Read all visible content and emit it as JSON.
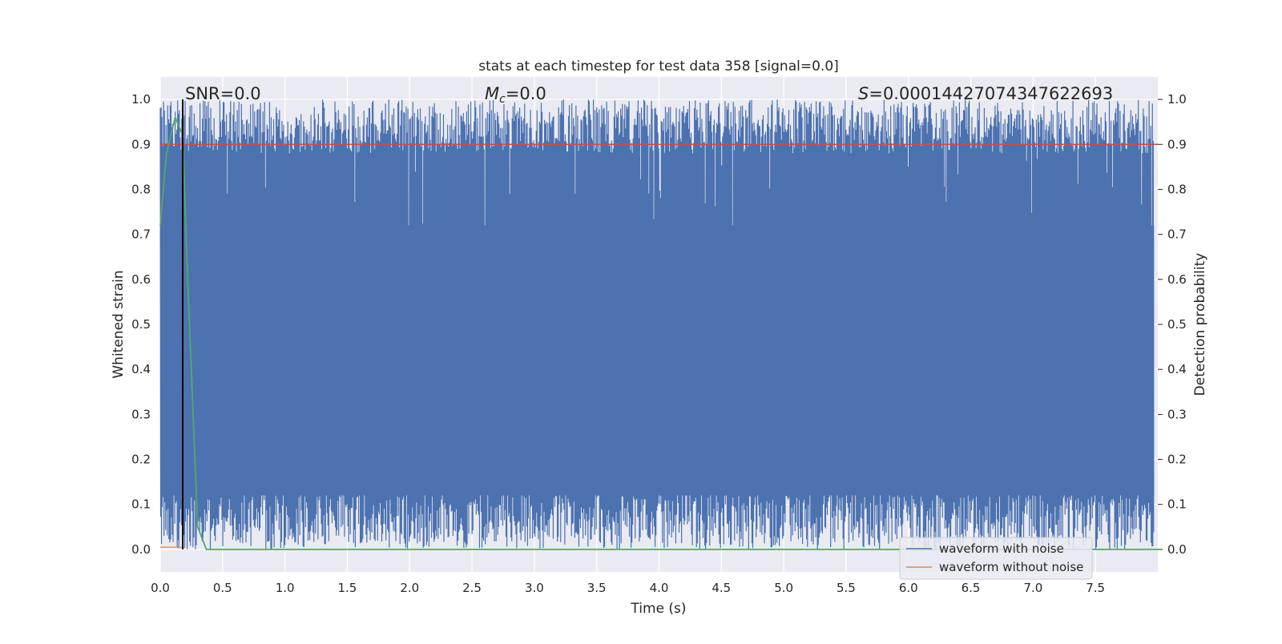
{
  "chart_data": {
    "type": "line",
    "title": "stats at each timestep for test data 358 [signal=0.0]",
    "xlabel": "Time (s)",
    "ylabel_left": "Whitened strain",
    "ylabel_right": "Detection probability",
    "xlim": [
      0.0,
      8.0
    ],
    "ylim": [
      -0.05,
      1.05
    ],
    "x_ticks": [
      "0.0",
      "0.5",
      "1.0",
      "1.5",
      "2.0",
      "2.5",
      "3.0",
      "3.5",
      "4.0",
      "4.5",
      "5.0",
      "5.5",
      "6.0",
      "6.5",
      "7.0",
      "7.5"
    ],
    "y_ticks": [
      "0.0",
      "0.1",
      "0.2",
      "0.3",
      "0.4",
      "0.5",
      "0.6",
      "0.7",
      "0.8",
      "0.9",
      "1.0"
    ],
    "grid": true,
    "legend_placement": "bottom-right",
    "annotations": {
      "snr": "SNR=0.0",
      "mc_symbol": "M",
      "mc_sub": "c",
      "mc_value": "=0.0",
      "s_symbol": "S",
      "s_value": "=0.0001442707434762269​3"
    },
    "series": [
      {
        "name": "waveform with noise",
        "color": "#4c72b0",
        "description_of_shape": "dense noisy band between ~0.0 and ~1.0",
        "envelope_min_approx": 0.0,
        "envelope_max_approx": 1.0
      },
      {
        "name": "waveform without noise",
        "color": "#dd8452",
        "x": [
          0.0,
          0.2
        ],
        "y": [
          0.005,
          0.005
        ]
      },
      {
        "color": "#55a868",
        "x": [
          0.0,
          0.05,
          0.12,
          0.18,
          0.22,
          0.3,
          0.37,
          0.45,
          8.0
        ],
        "y": [
          0.72,
          0.88,
          0.96,
          0.92,
          0.6,
          0.05,
          0.0,
          0.0,
          0.0
        ]
      }
    ],
    "threshold_line": {
      "y": 0.9,
      "color": "#c44e52"
    },
    "vertical_line": {
      "x": 0.18,
      "y_from": 0.0,
      "y_to": 1.0,
      "color": "#000000"
    }
  }
}
